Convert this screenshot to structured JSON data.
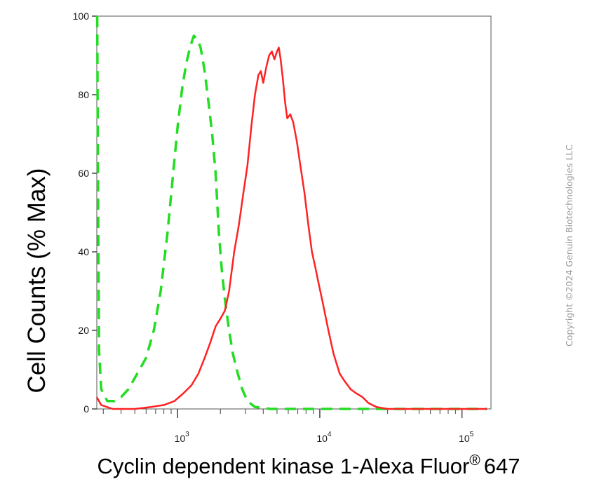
{
  "chart_data": {
    "type": "line",
    "xlabel": "Cyclin dependent kinase 1-Alexa Fluor",
    "xlabel_superscript": "®",
    "xlabel_suffix": "647",
    "ylabel": "Cell Counts (% Max)",
    "x_scale": "log",
    "xlim": [
      270,
      160000
    ],
    "ylim": [
      0,
      100
    ],
    "y_ticks": [
      {
        "value": 0,
        "label": "0"
      },
      {
        "value": 20,
        "label": "20"
      },
      {
        "value": 40,
        "label": "40"
      },
      {
        "value": 60,
        "label": "60"
      },
      {
        "value": 80,
        "label": "80"
      },
      {
        "value": 100,
        "label": "100"
      }
    ],
    "x_ticks": [
      {
        "value": 1000,
        "base": "10",
        "exp": "3"
      },
      {
        "value": 10000,
        "base": "10",
        "exp": "4"
      },
      {
        "value": 100000,
        "base": "10",
        "exp": "5"
      }
    ],
    "grid": false,
    "legend": "none",
    "series": [
      {
        "color": "#22dd22",
        "style": "dashed",
        "points": [
          [
            272,
            100
          ],
          [
            275,
            60
          ],
          [
            280,
            15
          ],
          [
            290,
            5
          ],
          [
            320,
            2
          ],
          [
            360,
            2
          ],
          [
            400,
            3
          ],
          [
            450,
            5
          ],
          [
            520,
            9
          ],
          [
            600,
            13
          ],
          [
            680,
            20
          ],
          [
            760,
            30
          ],
          [
            850,
            45
          ],
          [
            930,
            60
          ],
          [
            1000,
            72
          ],
          [
            1080,
            82
          ],
          [
            1150,
            88
          ],
          [
            1220,
            92
          ],
          [
            1300,
            95
          ],
          [
            1380,
            94
          ],
          [
            1450,
            92
          ],
          [
            1550,
            86
          ],
          [
            1650,
            78
          ],
          [
            1750,
            70
          ],
          [
            1850,
            60
          ],
          [
            1950,
            45
          ],
          [
            2050,
            35
          ],
          [
            2150,
            28
          ],
          [
            2300,
            20
          ],
          [
            2450,
            14
          ],
          [
            2650,
            9
          ],
          [
            2850,
            5
          ],
          [
            3100,
            2
          ],
          [
            3500,
            0.5
          ],
          [
            4500,
            0
          ],
          [
            10000,
            0
          ],
          [
            20000,
            0
          ],
          [
            50000,
            0
          ],
          [
            150000,
            0
          ]
        ]
      },
      {
        "color": "#ff2222",
        "style": "solid",
        "points": [
          [
            270,
            3
          ],
          [
            290,
            1
          ],
          [
            350,
            0
          ],
          [
            500,
            0
          ],
          [
            650,
            0.5
          ],
          [
            800,
            1
          ],
          [
            950,
            2
          ],
          [
            1100,
            4
          ],
          [
            1250,
            6
          ],
          [
            1400,
            9
          ],
          [
            1550,
            13
          ],
          [
            1700,
            17
          ],
          [
            1850,
            21
          ],
          [
            2000,
            23
          ],
          [
            2150,
            25
          ],
          [
            2300,
            30
          ],
          [
            2500,
            40
          ],
          [
            2700,
            47
          ],
          [
            2900,
            55
          ],
          [
            3100,
            62
          ],
          [
            3300,
            72
          ],
          [
            3500,
            80
          ],
          [
            3700,
            85
          ],
          [
            3850,
            86
          ],
          [
            4000,
            83
          ],
          [
            4200,
            87
          ],
          [
            4400,
            90
          ],
          [
            4600,
            91
          ],
          [
            4800,
            89
          ],
          [
            5000,
            91
          ],
          [
            5150,
            92
          ],
          [
            5300,
            89
          ],
          [
            5500,
            84
          ],
          [
            5700,
            78
          ],
          [
            5900,
            74
          ],
          [
            6200,
            75
          ],
          [
            6500,
            73
          ],
          [
            6900,
            68
          ],
          [
            7300,
            62
          ],
          [
            7800,
            55
          ],
          [
            8300,
            47
          ],
          [
            8800,
            40
          ],
          [
            9300,
            36
          ],
          [
            9800,
            32
          ],
          [
            10500,
            27
          ],
          [
            11500,
            20
          ],
          [
            12500,
            14
          ],
          [
            13800,
            9
          ],
          [
            15000,
            7
          ],
          [
            16500,
            5
          ],
          [
            18000,
            4
          ],
          [
            20000,
            3
          ],
          [
            22000,
            1.5
          ],
          [
            25000,
            0.5
          ],
          [
            30000,
            0
          ],
          [
            60000,
            0
          ],
          [
            150000,
            0
          ]
        ]
      }
    ]
  },
  "watermark": "Copyright ©2024 Genuin Biotechnologies LLC"
}
